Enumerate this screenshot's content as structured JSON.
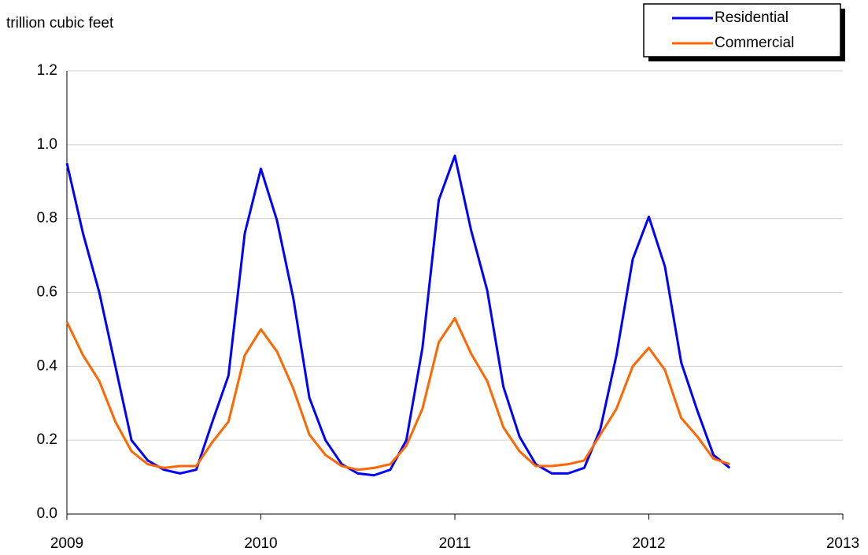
{
  "chart_data": {
    "type": "line",
    "ylabel": "trillion cubic feet",
    "x": [
      2009,
      2009.083,
      2009.167,
      2009.25,
      2009.333,
      2009.417,
      2009.5,
      2009.583,
      2009.667,
      2009.75,
      2009.833,
      2009.917,
      2010,
      2010.083,
      2010.167,
      2010.25,
      2010.333,
      2010.417,
      2010.5,
      2010.583,
      2010.667,
      2010.75,
      2010.833,
      2010.917,
      2011,
      2011.083,
      2011.167,
      2011.25,
      2011.333,
      2011.417,
      2011.5,
      2011.583,
      2011.667,
      2011.75,
      2011.833,
      2011.917,
      2012,
      2012.083,
      2012.167,
      2012.25,
      2012.333,
      2012.417
    ],
    "series": [
      {
        "name": "Residential",
        "color": "#0000ff",
        "values": [
          0.95,
          0.76,
          0.6,
          0.4,
          0.2,
          0.145,
          0.12,
          0.11,
          0.12,
          0.25,
          0.375,
          0.76,
          0.935,
          0.795,
          0.585,
          0.315,
          0.2,
          0.135,
          0.11,
          0.105,
          0.12,
          0.2,
          0.45,
          0.85,
          0.97,
          0.77,
          0.605,
          0.345,
          0.21,
          0.135,
          0.11,
          0.11,
          0.125,
          0.23,
          0.43,
          0.69,
          0.805,
          0.67,
          0.41,
          0.28,
          0.16,
          0.125
        ]
      },
      {
        "name": "Commercial",
        "color": "#ff6600",
        "values": [
          0.52,
          0.43,
          0.36,
          0.25,
          0.17,
          0.135,
          0.125,
          0.13,
          0.13,
          0.195,
          0.25,
          0.43,
          0.5,
          0.44,
          0.34,
          0.215,
          0.16,
          0.13,
          0.12,
          0.125,
          0.135,
          0.185,
          0.285,
          0.465,
          0.53,
          0.435,
          0.36,
          0.235,
          0.17,
          0.13,
          0.13,
          0.135,
          0.145,
          0.215,
          0.285,
          0.4,
          0.45,
          0.39,
          0.26,
          0.21,
          0.15,
          0.135
        ]
      }
    ],
    "xlim": [
      2009,
      2013
    ],
    "xticks": [
      2009,
      2010,
      2011,
      2012,
      2013
    ],
    "ylim": [
      0,
      1.2
    ],
    "yticks": [
      {
        "value": 0,
        "label": "0.0"
      },
      0.2,
      0.4,
      0.6,
      0.8,
      {
        "value": 1,
        "label": "1.0"
      },
      1.2
    ],
    "grid": true,
    "legend": "top-right"
  }
}
